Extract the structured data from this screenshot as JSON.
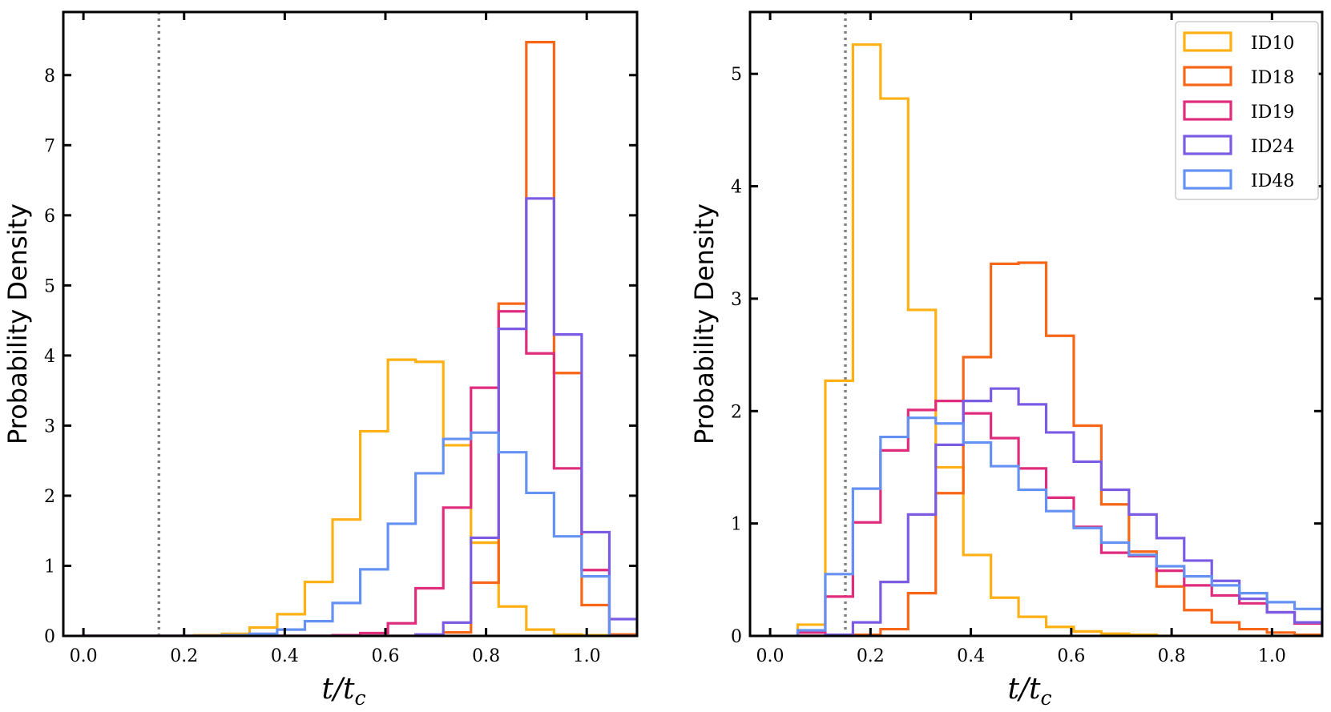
{
  "chart_data": [
    {
      "type": "histogram-step",
      "title": "",
      "xlabel": "t/t",
      "xlabel_sub": "c",
      "ylabel": "Probability Density",
      "xlim": [
        -0.04,
        1.1
      ],
      "ylim": [
        0,
        8.9
      ],
      "xticks": [
        "0.0",
        "0.2",
        "0.4",
        "0.6",
        "0.8",
        "1.0"
      ],
      "yticks": [
        "0",
        "1",
        "2",
        "3",
        "4",
        "5",
        "6",
        "7",
        "8"
      ],
      "vline": 0.15,
      "bin_start": 0.0,
      "bin_width": 0.055,
      "series": [
        {
          "name": "ID10",
          "color": "#FFB014",
          "values": [
            0,
            0,
            0,
            0,
            0.01,
            0.03,
            0.12,
            0.31,
            0.77,
            1.66,
            2.92,
            3.94,
            3.91,
            2.72,
            1.33,
            0.42,
            0.09,
            0.02,
            0.01,
            0.0
          ]
        },
        {
          "name": "ID18",
          "color": "#F86618",
          "values": [
            0,
            0,
            0,
            0,
            0,
            0,
            0,
            0,
            0,
            0,
            0,
            0,
            0,
            0.05,
            0.76,
            4.74,
            8.47,
            3.75,
            0.44,
            0.02
          ]
        },
        {
          "name": "ID19",
          "color": "#DF2C7C",
          "values": [
            0,
            0,
            0,
            0,
            0,
            0,
            0,
            0,
            0,
            0.01,
            0.04,
            0.18,
            0.68,
            1.83,
            3.54,
            4.63,
            4.03,
            2.39,
            0.94,
            0.0
          ]
        },
        {
          "name": "ID24",
          "color": "#7B5BE4",
          "values": [
            0,
            0,
            0,
            0,
            0,
            0,
            0,
            0,
            0,
            0,
            0,
            0,
            0.02,
            0.19,
            1.4,
            4.38,
            6.24,
            4.3,
            1.48,
            0.24
          ]
        },
        {
          "name": "ID48",
          "color": "#6592F2",
          "values": [
            0,
            0,
            0,
            0,
            0,
            0.01,
            0.03,
            0.09,
            0.21,
            0.47,
            0.95,
            1.6,
            2.32,
            2.81,
            2.9,
            2.62,
            2.04,
            1.42,
            0.85,
            0.0
          ]
        }
      ]
    },
    {
      "type": "histogram-step",
      "title": "",
      "xlabel": "t/t",
      "xlabel_sub": "c",
      "ylabel": "Probability Density",
      "xlim": [
        -0.04,
        1.1
      ],
      "ylim": [
        0,
        5.55
      ],
      "xticks": [
        "0.0",
        "0.2",
        "0.4",
        "0.6",
        "0.8",
        "1.0"
      ],
      "yticks": [
        "0",
        "1",
        "2",
        "3",
        "4",
        "5"
      ],
      "vline": 0.15,
      "bin_start": 0.055,
      "bin_width": 0.055,
      "legend_position": "top-right",
      "series": [
        {
          "name": "ID10",
          "color": "#FFB014",
          "values": [
            0.1,
            2.27,
            5.26,
            4.78,
            2.9,
            1.5,
            0.72,
            0.34,
            0.17,
            0.08,
            0.04,
            0.02,
            0.01,
            0.0,
            0.0,
            0.0,
            0.0,
            0.0,
            0.0
          ]
        },
        {
          "name": "ID18",
          "color": "#F86618",
          "values": [
            0,
            0,
            0.01,
            0.06,
            0.38,
            1.27,
            2.48,
            3.31,
            3.32,
            2.67,
            1.87,
            1.17,
            0.75,
            0.44,
            0.23,
            0.12,
            0.06,
            0.03,
            0.01
          ]
        },
        {
          "name": "ID19",
          "color": "#DF2C7C",
          "values": [
            0.03,
            0.35,
            1.01,
            1.65,
            2.01,
            2.09,
            1.98,
            1.76,
            1.49,
            1.23,
            0.97,
            0.74,
            0.71,
            0.58,
            0.45,
            0.36,
            0.29,
            0.21,
            0.11
          ]
        },
        {
          "name": "ID24",
          "color": "#7B5BE4",
          "values": [
            0,
            0.01,
            0.12,
            0.48,
            1.08,
            1.7,
            2.09,
            2.2,
            2.06,
            1.81,
            1.55,
            1.3,
            1.08,
            0.87,
            0.67,
            0.49,
            0.33,
            0.21,
            0.12
          ]
        },
        {
          "name": "ID48",
          "color": "#6592F2",
          "values": [
            0.05,
            0.55,
            1.31,
            1.77,
            1.94,
            1.89,
            1.72,
            1.51,
            1.3,
            1.11,
            0.96,
            0.83,
            0.72,
            0.62,
            0.53,
            0.45,
            0.38,
            0.3,
            0.24
          ]
        }
      ]
    }
  ]
}
